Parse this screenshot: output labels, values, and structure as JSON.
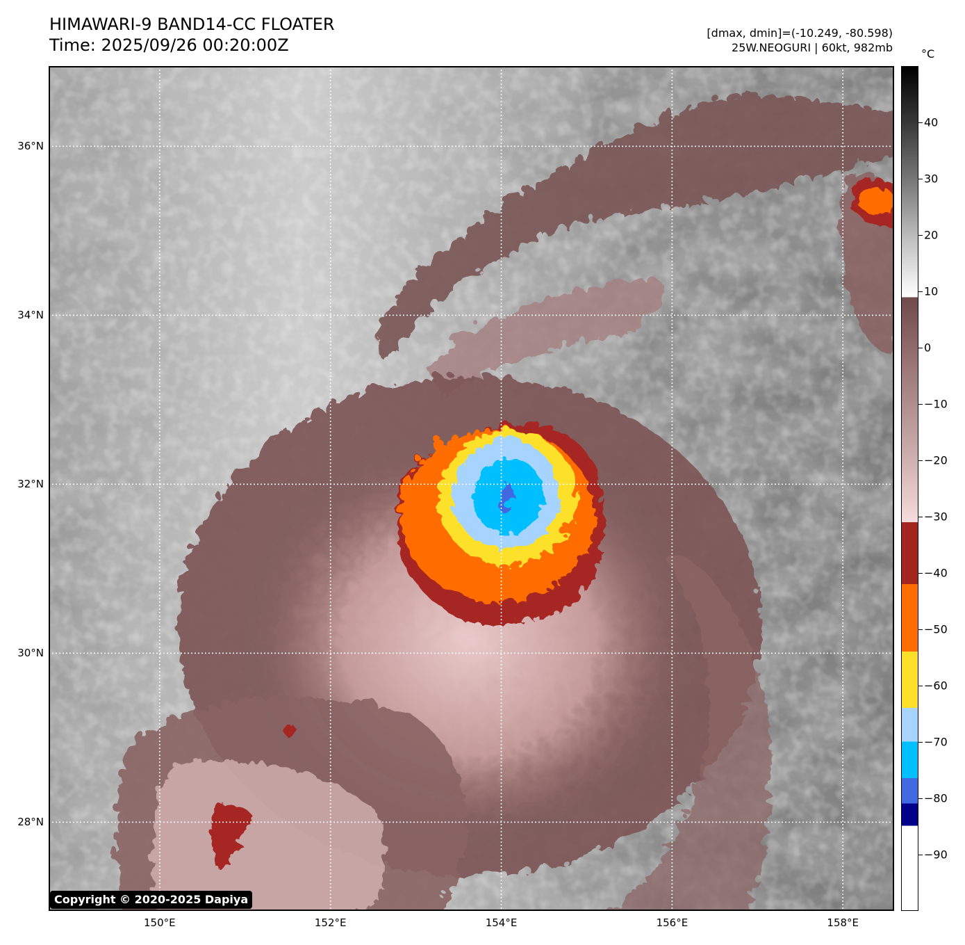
{
  "title": {
    "line1": "HIMAWARI-9 BAND14-CC FLOATER",
    "line2": "Time: 2025/09/26 00:20:00Z"
  },
  "info": {
    "range": "[dmax, dmin]=(-10.249, -80.598)",
    "storm": "25W.NEOGURI | 60kt, 982mb"
  },
  "copyright": "Copyright © 2020-2025 Dapiya",
  "map": {
    "lon_range": [
      148.7,
      158.6
    ],
    "lat_range": [
      26.95,
      36.95
    ],
    "lon_ticks": [
      {
        "value": 150,
        "label": "150°E"
      },
      {
        "value": 152,
        "label": "152°E"
      },
      {
        "value": 154,
        "label": "154°E"
      },
      {
        "value": 156,
        "label": "156°E"
      },
      {
        "value": 158,
        "label": "158°E"
      }
    ],
    "lat_ticks": [
      {
        "value": 36,
        "label": "36°N"
      },
      {
        "value": 34,
        "label": "34°N"
      },
      {
        "value": 32,
        "label": "32°N"
      },
      {
        "value": 30,
        "label": "30°N"
      },
      {
        "value": 28,
        "label": "28°N"
      }
    ],
    "storm_center": {
      "lon": 154.0,
      "lat": 31.85
    },
    "grid": "dotted white"
  },
  "colorbar": {
    "unit": "°C",
    "range": [
      -100,
      50
    ],
    "ticks": [
      {
        "value": 40,
        "label": "40"
      },
      {
        "value": 30,
        "label": "30"
      },
      {
        "value": 20,
        "label": "20"
      },
      {
        "value": 10,
        "label": "10"
      },
      {
        "value": 0,
        "label": "0"
      },
      {
        "value": -10,
        "label": "−10"
      },
      {
        "value": -20,
        "label": "−20"
      },
      {
        "value": -30,
        "label": "−30"
      },
      {
        "value": -40,
        "label": "−40"
      },
      {
        "value": -50,
        "label": "−50"
      },
      {
        "value": -60,
        "label": "−60"
      },
      {
        "value": -70,
        "label": "−70"
      },
      {
        "value": -80,
        "label": "−80"
      },
      {
        "value": -90,
        "label": "−90"
      }
    ],
    "bands": [
      {
        "from": 50,
        "to": 9,
        "colors": [
          "#000000",
          "#3a3a3a",
          "#7a7a7a",
          "#c0c0c0",
          "#ffffff"
        ]
      },
      {
        "from": 9,
        "to": -31,
        "colors": [
          "#6e4a4a",
          "#9e7a7a",
          "#c8a8a8",
          "#f6dcdc"
        ]
      },
      {
        "from": -31,
        "to": -42,
        "color": "#a52520"
      },
      {
        "from": -42,
        "to": -54,
        "color": "#ff6d00"
      },
      {
        "from": -54,
        "to": -64,
        "color": "#fde02a"
      },
      {
        "from": -64,
        "to": -70,
        "color": "#a6d4ff"
      },
      {
        "from": -70,
        "to": -76.5,
        "color": "#00bfff"
      },
      {
        "from": -76.5,
        "to": -81,
        "color": "#4169e1"
      },
      {
        "from": -81,
        "to": -85,
        "color": "#00008b"
      },
      {
        "from": -85,
        "to": -100,
        "color": "#ffffff"
      }
    ]
  }
}
